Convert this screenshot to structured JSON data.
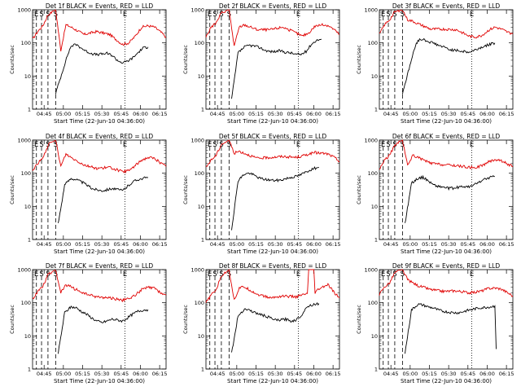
{
  "colors": {
    "events": "#000000",
    "lld": "#e00000",
    "axis": "#000000",
    "background": "#ffffff"
  },
  "common": {
    "xlabel": "Start Time (22-Jun-10 04:36:00)",
    "ylabel": "Counts/sec",
    "y_ticks": [
      "1",
      "10",
      "100",
      "1000"
    ],
    "x_ticks": [
      "04:45",
      "05:00",
      "05:15",
      "05:30",
      "05:45",
      "06:00",
      "06:15"
    ]
  },
  "chart_data": [
    {
      "type": "line",
      "title": "Det 1f BLACK = Events, RED = LLD",
      "xlabel": "Start Time (22-Jun-10 04:36:00)",
      "ylabel": "Counts/sec",
      "x_unit": "minutes after 04:36:00",
      "xlim": [
        0,
        104
      ],
      "ylim": [
        1,
        1000
      ],
      "y_scale": "log",
      "markers_text": [
        "E",
        "S",
        "S",
        "S",
        "E"
      ],
      "markers_x": [
        3,
        7,
        12,
        18,
        72
      ],
      "series": [
        {
          "name": "LLD",
          "color": "#e00000",
          "x": [
            0,
            4,
            8,
            12,
            16,
            18,
            22,
            26,
            30,
            40,
            50,
            60,
            70,
            75,
            80,
            85,
            90,
            95,
            100,
            104
          ],
          "values": [
            130,
            220,
            330,
            700,
            900,
            1000,
            60,
            350,
            300,
            180,
            220,
            180,
            90,
            100,
            160,
            300,
            330,
            300,
            210,
            150
          ]
        },
        {
          "name": "Events",
          "color": "#000000",
          "x": [
            18,
            27,
            30,
            34,
            38,
            42,
            46,
            50,
            54,
            58,
            62,
            66,
            70,
            74,
            78,
            82,
            86,
            90
          ],
          "values": [
            3,
            40,
            80,
            90,
            70,
            55,
            48,
            44,
            46,
            48,
            42,
            30,
            25,
            28,
            35,
            50,
            70,
            75
          ]
        }
      ]
    },
    {
      "type": "line",
      "title": "Det 2f BLACK = Events, RED = LLD",
      "xlabel": "Start Time (22-Jun-10 04:36:00)",
      "ylabel": "Counts/sec",
      "x_unit": "minutes after 04:36:00",
      "xlim": [
        0,
        104
      ],
      "ylim": [
        1,
        1000
      ],
      "y_scale": "log",
      "markers_text": [
        "E",
        "S",
        "S",
        "S",
        "E"
      ],
      "markers_x": [
        3,
        7,
        12,
        18,
        72
      ],
      "series": [
        {
          "name": "LLD",
          "color": "#e00000",
          "x": [
            0,
            4,
            8,
            12,
            16,
            18,
            22,
            26,
            30,
            40,
            50,
            60,
            70,
            75,
            80,
            85,
            90,
            95,
            100,
            104
          ],
          "values": [
            150,
            300,
            400,
            800,
            950,
            1000,
            80,
            300,
            350,
            250,
            250,
            300,
            200,
            160,
            200,
            320,
            350,
            340,
            250,
            180
          ]
        },
        {
          "name": "Events",
          "color": "#000000",
          "x": [
            20,
            25,
            30,
            34,
            38,
            42,
            46,
            50,
            54,
            58,
            62,
            66,
            70,
            74,
            78,
            82,
            86,
            90
          ],
          "values": [
            2,
            50,
            75,
            85,
            80,
            72,
            60,
            55,
            55,
            58,
            52,
            50,
            45,
            45,
            55,
            90,
            120,
            130
          ]
        }
      ]
    },
    {
      "type": "line",
      "title": "Det 3f BLACK = Events, RED = LLD",
      "xlabel": "Start Time (22-Jun-10 04:36:00)",
      "ylabel": "Counts/sec",
      "x_unit": "minutes after 04:36:00",
      "xlim": [
        0,
        104
      ],
      "ylim": [
        1,
        1000
      ],
      "y_scale": "log",
      "markers_text": [
        "E",
        "S",
        "S",
        "S",
        "E"
      ],
      "markers_x": [
        3,
        7,
        12,
        18,
        72
      ],
      "series": [
        {
          "name": "LLD",
          "color": "#e00000",
          "x": [
            0,
            4,
            8,
            12,
            16,
            18,
            22,
            26,
            30,
            40,
            50,
            60,
            70,
            75,
            80,
            85,
            90,
            95,
            100,
            104
          ],
          "values": [
            180,
            350,
            500,
            850,
            950,
            1000,
            500,
            450,
            380,
            260,
            260,
            250,
            160,
            150,
            170,
            240,
            300,
            260,
            210,
            190
          ]
        },
        {
          "name": "Events",
          "color": "#000000",
          "x": [
            18,
            27,
            30,
            34,
            38,
            42,
            46,
            50,
            54,
            58,
            62,
            66,
            70,
            74,
            78,
            82,
            86,
            90
          ],
          "values": [
            3,
            60,
            120,
            130,
            110,
            100,
            85,
            75,
            65,
            60,
            58,
            55,
            52,
            60,
            70,
            80,
            90,
            100
          ]
        }
      ]
    },
    {
      "type": "line",
      "title": "Det 4f BLACK = Events, RED = LLD",
      "xlabel": "Start Time (22-Jun-10 04:36:00)",
      "ylabel": "Counts/sec",
      "x_unit": "minutes after 04:36:00",
      "xlim": [
        0,
        104
      ],
      "ylim": [
        1,
        1000
      ],
      "y_scale": "log",
      "markers_text": [
        "E",
        "S",
        "S",
        "S",
        "E"
      ],
      "markers_x": [
        3,
        7,
        12,
        18,
        72
      ],
      "series": [
        {
          "name": "LLD",
          "color": "#e00000",
          "x": [
            0,
            4,
            8,
            12,
            16,
            18,
            22,
            26,
            30,
            40,
            50,
            60,
            70,
            75,
            80,
            85,
            90,
            95,
            100,
            104
          ],
          "values": [
            120,
            200,
            280,
            700,
            900,
            1000,
            160,
            380,
            300,
            180,
            140,
            150,
            110,
            120,
            170,
            250,
            300,
            280,
            200,
            160
          ]
        },
        {
          "name": "Events",
          "color": "#000000",
          "x": [
            20,
            25,
            30,
            34,
            38,
            42,
            46,
            50,
            54,
            58,
            62,
            66,
            70,
            74,
            78,
            82,
            86,
            90
          ],
          "values": [
            3,
            45,
            70,
            65,
            55,
            45,
            35,
            32,
            30,
            32,
            35,
            32,
            30,
            40,
            55,
            65,
            70,
            75
          ]
        }
      ]
    },
    {
      "type": "line",
      "title": "Det 5f BLACK = Events, RED = LLD",
      "xlabel": "Start Time (22-Jun-10 04:36:00)",
      "ylabel": "Counts/sec",
      "x_unit": "minutes after 04:36:00",
      "xlim": [
        0,
        104
      ],
      "ylim": [
        1,
        1000
      ],
      "y_scale": "log",
      "markers_text": [
        "E",
        "S",
        "S",
        "S",
        "E"
      ],
      "markers_x": [
        3,
        7,
        12,
        18,
        72
      ],
      "series": [
        {
          "name": "LLD",
          "color": "#e00000",
          "x": [
            0,
            4,
            8,
            12,
            16,
            18,
            22,
            26,
            30,
            40,
            50,
            60,
            70,
            75,
            80,
            85,
            90,
            95,
            100,
            104
          ],
          "values": [
            150,
            250,
            350,
            750,
            900,
            1000,
            400,
            460,
            400,
            280,
            300,
            320,
            300,
            330,
            380,
            420,
            400,
            380,
            300,
            230
          ]
        },
        {
          "name": "Events",
          "color": "#000000",
          "x": [
            20,
            25,
            30,
            34,
            38,
            42,
            46,
            50,
            54,
            58,
            62,
            66,
            70,
            74,
            78,
            82,
            86,
            88
          ],
          "values": [
            2,
            60,
            95,
            100,
            85,
            70,
            65,
            62,
            60,
            62,
            68,
            75,
            80,
            90,
            110,
            130,
            145,
            150
          ]
        }
      ]
    },
    {
      "type": "line",
      "title": "Det 6f BLACK = Events, RED = LLD",
      "xlabel": "Start Time (22-Jun-10 04:36:00)",
      "ylabel": "Counts/sec",
      "x_unit": "minutes after 04:36:00",
      "xlim": [
        0,
        104
      ],
      "ylim": [
        1,
        1000
      ],
      "y_scale": "log",
      "markers_text": [
        "E",
        "S",
        "S",
        "S",
        "E"
      ],
      "markers_x": [
        3,
        7,
        12,
        18,
        72
      ],
      "series": [
        {
          "name": "LLD",
          "color": "#e00000",
          "x": [
            0,
            4,
            8,
            12,
            16,
            18,
            22,
            26,
            30,
            40,
            50,
            60,
            70,
            75,
            80,
            85,
            90,
            95,
            100,
            104
          ],
          "values": [
            130,
            250,
            350,
            700,
            900,
            1000,
            170,
            350,
            300,
            200,
            180,
            170,
            150,
            150,
            170,
            220,
            260,
            240,
            190,
            160
          ]
        },
        {
          "name": "Events",
          "color": "#000000",
          "x": [
            20,
            25,
            30,
            34,
            38,
            42,
            46,
            50,
            54,
            58,
            62,
            66,
            70,
            74,
            78,
            82,
            86,
            90
          ],
          "values": [
            3,
            50,
            70,
            75,
            60,
            45,
            40,
            38,
            35,
            35,
            38,
            40,
            38,
            45,
            55,
            65,
            75,
            80
          ]
        }
      ]
    },
    {
      "type": "line",
      "title": "Det 7f BLACK = Events, RED = LLD",
      "xlabel": "Start Time (22-Jun-10 04:36:00)",
      "ylabel": "Counts/sec",
      "x_unit": "minutes after 04:36:00",
      "xlim": [
        0,
        104
      ],
      "ylim": [
        1,
        1000
      ],
      "y_scale": "log",
      "markers_text": [
        "E",
        "S",
        "S",
        "S",
        "E"
      ],
      "markers_x": [
        3,
        7,
        12,
        18,
        72
      ],
      "series": [
        {
          "name": "LLD",
          "color": "#e00000",
          "x": [
            0,
            4,
            8,
            12,
            16,
            18,
            22,
            26,
            30,
            40,
            50,
            60,
            70,
            75,
            80,
            85,
            90,
            95,
            100,
            104
          ],
          "values": [
            130,
            220,
            320,
            700,
            900,
            1000,
            200,
            340,
            300,
            190,
            150,
            140,
            120,
            130,
            170,
            250,
            290,
            270,
            200,
            170
          ]
        },
        {
          "name": "Events",
          "color": "#000000",
          "x": [
            20,
            25,
            30,
            34,
            38,
            42,
            46,
            50,
            54,
            58,
            62,
            66,
            70,
            74,
            78,
            82,
            86,
            90
          ],
          "values": [
            3,
            50,
            75,
            70,
            55,
            45,
            35,
            28,
            25,
            28,
            32,
            30,
            28,
            35,
            45,
            55,
            60,
            62
          ]
        }
      ]
    },
    {
      "type": "line",
      "title": "Det 8f BLACK = Events, RED = LLD",
      "xlabel": "Start Time (22-Jun-10 04:36:00)",
      "ylabel": "Counts/sec",
      "x_unit": "minutes after 04:36:00",
      "xlim": [
        0,
        104
      ],
      "ylim": [
        1,
        1000
      ],
      "y_scale": "log",
      "markers_text": [
        "E",
        "S",
        "S",
        "S",
        "E"
      ],
      "markers_x": [
        3,
        7,
        12,
        18,
        72
      ],
      "series": [
        {
          "name": "LLD",
          "color": "#e00000",
          "x": [
            0,
            4,
            8,
            12,
            16,
            18,
            22,
            26,
            30,
            40,
            50,
            60,
            70,
            75,
            79,
            80,
            84,
            85,
            88,
            95,
            100,
            104
          ],
          "values": [
            100,
            170,
            250,
            650,
            850,
            1000,
            120,
            280,
            300,
            180,
            140,
            160,
            150,
            170,
            190,
            1000,
            1000,
            200,
            260,
            350,
            200,
            140
          ]
        },
        {
          "name": "Events",
          "color": "#000000",
          "x": [
            20,
            25,
            30,
            34,
            38,
            42,
            46,
            50,
            54,
            58,
            62,
            66,
            70,
            74,
            78,
            80,
            84,
            88
          ],
          "values": [
            3,
            40,
            65,
            60,
            50,
            45,
            40,
            35,
            30,
            30,
            32,
            28,
            30,
            40,
            70,
            80,
            90,
            95
          ]
        }
      ]
    },
    {
      "type": "line",
      "title": "Det 9f BLACK = Events, RED = LLD",
      "xlabel": "Start Time (22-Jun-10 04:36:00)",
      "ylabel": "Counts/sec",
      "x_unit": "minutes after 04:36:00",
      "xlim": [
        0,
        104
      ],
      "ylim": [
        1,
        1000
      ],
      "y_scale": "log",
      "markers_text": [
        "E",
        "S",
        "S",
        "S",
        "E"
      ],
      "markers_x": [
        3,
        7,
        12,
        18,
        72
      ],
      "series": [
        {
          "name": "LLD",
          "color": "#e00000",
          "x": [
            0,
            4,
            8,
            12,
            16,
            18,
            22,
            26,
            30,
            40,
            50,
            60,
            70,
            75,
            80,
            85,
            90,
            95,
            100,
            104
          ],
          "values": [
            180,
            300,
            400,
            800,
            950,
            1000,
            500,
            400,
            330,
            250,
            220,
            230,
            200,
            210,
            230,
            270,
            280,
            260,
            200,
            160
          ]
        },
        {
          "name": "Events",
          "color": "#000000",
          "x": [
            20,
            25,
            30,
            34,
            38,
            42,
            46,
            50,
            54,
            58,
            62,
            66,
            70,
            74,
            78,
            82,
            86,
            90,
            91
          ],
          "values": [
            3,
            60,
            90,
            85,
            75,
            70,
            60,
            55,
            52,
            50,
            50,
            55,
            60,
            65,
            70,
            72,
            75,
            80,
            4
          ]
        }
      ]
    }
  ]
}
